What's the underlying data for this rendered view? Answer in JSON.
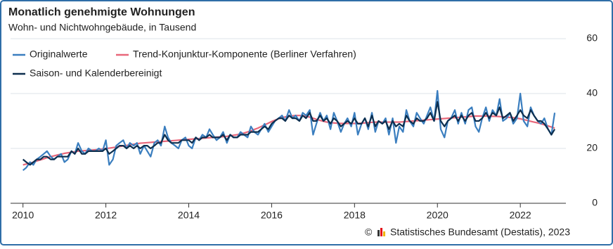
{
  "chart_data": {
    "type": "line",
    "title": "Monatlich genehmigte Wohnungen",
    "subtitle": "Wohn- und Nichtwohngebäude, in Tausend",
    "copyright": "©",
    "source": "Statistisches Bundesamt (Destatis), 2023",
    "legend": "top-left",
    "grid": true,
    "xlim": [
      2009.7,
      2023.1
    ],
    "xticks": [
      2010,
      2012,
      2014,
      2016,
      2018,
      2020,
      2022
    ],
    "ylim": [
      0,
      60
    ],
    "yticks": [
      0,
      20,
      40,
      60
    ],
    "x": [
      2010,
      2010.08,
      2010.17,
      2010.25,
      2010.33,
      2010.42,
      2010.5,
      2010.58,
      2010.67,
      2010.75,
      2010.83,
      2010.92,
      2011,
      2011.08,
      2011.17,
      2011.25,
      2011.33,
      2011.42,
      2011.5,
      2011.58,
      2011.67,
      2011.75,
      2011.83,
      2011.92,
      2012,
      2012.08,
      2012.17,
      2012.25,
      2012.33,
      2012.42,
      2012.5,
      2012.58,
      2012.67,
      2012.75,
      2012.83,
      2012.92,
      2013,
      2013.08,
      2013.17,
      2013.25,
      2013.33,
      2013.42,
      2013.5,
      2013.58,
      2013.67,
      2013.75,
      2013.83,
      2013.92,
      2014,
      2014.08,
      2014.17,
      2014.25,
      2014.33,
      2014.42,
      2014.5,
      2014.58,
      2014.67,
      2014.75,
      2014.83,
      2014.92,
      2015,
      2015.08,
      2015.17,
      2015.25,
      2015.33,
      2015.42,
      2015.5,
      2015.58,
      2015.67,
      2015.75,
      2015.83,
      2015.92,
      2016,
      2016.08,
      2016.17,
      2016.25,
      2016.33,
      2016.42,
      2016.5,
      2016.58,
      2016.67,
      2016.75,
      2016.83,
      2016.92,
      2017,
      2017.08,
      2017.17,
      2017.25,
      2017.33,
      2017.42,
      2017.5,
      2017.58,
      2017.67,
      2017.75,
      2017.83,
      2017.92,
      2018,
      2018.08,
      2018.17,
      2018.25,
      2018.33,
      2018.42,
      2018.5,
      2018.58,
      2018.67,
      2018.75,
      2018.83,
      2018.92,
      2019,
      2019.08,
      2019.17,
      2019.25,
      2019.33,
      2019.42,
      2019.5,
      2019.58,
      2019.67,
      2019.75,
      2019.83,
      2019.92,
      2020,
      2020.08,
      2020.17,
      2020.25,
      2020.33,
      2020.42,
      2020.5,
      2020.58,
      2020.67,
      2020.75,
      2020.83,
      2020.92,
      2021,
      2021.08,
      2021.17,
      2021.25,
      2021.33,
      2021.42,
      2021.5,
      2021.58,
      2021.67,
      2021.75,
      2021.83,
      2021.92,
      2022,
      2022.08,
      2022.17,
      2022.25,
      2022.33,
      2022.42,
      2022.5,
      2022.58,
      2022.67,
      2022.75,
      2022.83
    ],
    "series": [
      {
        "name": "Trend-Konjunktur-Komponente (Berliner Verfahren)",
        "color": "#e8677a",
        "values": [
          14,
          14.3,
          14.6,
          15,
          15.4,
          15.8,
          16.2,
          16.6,
          17,
          17.3,
          17.6,
          17.9,
          18.2,
          18.4,
          18.6,
          18.8,
          19,
          19.1,
          19.2,
          19.3,
          19.4,
          19.5,
          19.6,
          19.8,
          20,
          20.1,
          20.3,
          20.5,
          20.7,
          20.9,
          21.1,
          21.3,
          21.5,
          21.7,
          21.9,
          22,
          22.1,
          22.2,
          22.3,
          22.4,
          22.5,
          22.6,
          22.7,
          22.8,
          22.9,
          23,
          23.1,
          23.2,
          23.3,
          23.4,
          23.5,
          23.6,
          23.7,
          23.8,
          23.9,
          24,
          24.1,
          24.2,
          24.3,
          24.4,
          24.6,
          24.8,
          25,
          25.3,
          25.6,
          26,
          26.4,
          26.9,
          27.4,
          28,
          28.6,
          29.2,
          29.8,
          30.3,
          30.8,
          31.2,
          31.5,
          31.7,
          31.9,
          32,
          32,
          31.9,
          31.7,
          31.4,
          31,
          30.6,
          30.2,
          29.9,
          29.6,
          29.4,
          29.3,
          29.2,
          29.1,
          29.1,
          29.1,
          29.1,
          29.1,
          29.1,
          29.2,
          29.3,
          29.4,
          29.5,
          29.6,
          29.6,
          29.6,
          29.6,
          29.6,
          29.6,
          29.6,
          29.6,
          29.7,
          29.8,
          29.9,
          30,
          30.1,
          30.2,
          30.3,
          30.4,
          30.5,
          30.6,
          30.7,
          30.8,
          30.9,
          31,
          31.1,
          31.2,
          31.3,
          31.4,
          31.5,
          31.6,
          31.7,
          31.8,
          31.8,
          31.8,
          31.8,
          31.8,
          31.7,
          31.7,
          31.6,
          31.5,
          31.4,
          31.3,
          31.2,
          31,
          30.8,
          30.5,
          30.2,
          29.9,
          29.6,
          29.3,
          29,
          28.6,
          28.2,
          27.8,
          27.4
        ]
      },
      {
        "name": "Originalwerte",
        "color": "#3a7ebf",
        "values": [
          12,
          13,
          15,
          14,
          16,
          17,
          18,
          19,
          17,
          16,
          17,
          18,
          15,
          16,
          19,
          18,
          22,
          19,
          18,
          20,
          19,
          19,
          20,
          19,
          23,
          14,
          16,
          21,
          22,
          23,
          20,
          22,
          21,
          22,
          18,
          21,
          19,
          17,
          22,
          23,
          21,
          28,
          24,
          22,
          21,
          20,
          23,
          24,
          21,
          20,
          24,
          23,
          25,
          24,
          27,
          25,
          23,
          24,
          26,
          22,
          25,
          24,
          24,
          26,
          25,
          24,
          28,
          26,
          25,
          27,
          29,
          26,
          28,
          30,
          31,
          32,
          30,
          34,
          31,
          32,
          30,
          33,
          32,
          34,
          25,
          29,
          33,
          30,
          32,
          27,
          33,
          30,
          26,
          29,
          31,
          28,
          33,
          25,
          29,
          31,
          27,
          33,
          26,
          30,
          29,
          31,
          25,
          31,
          22,
          28,
          26,
          34,
          30,
          28,
          33,
          31,
          29,
          32,
          35,
          30,
          41,
          27,
          24,
          30,
          31,
          34,
          29,
          33,
          29,
          34,
          35,
          28,
          26,
          31,
          35,
          30,
          34,
          32,
          38,
          30,
          31,
          33,
          29,
          31,
          40,
          30,
          28,
          35,
          32,
          30,
          29,
          31,
          27,
          25,
          33
        ]
      },
      {
        "name": "Saison- und Kalenderbereinigt",
        "color": "#0d2f4f",
        "values": [
          16,
          15,
          14,
          15,
          16,
          16,
          17,
          17,
          16,
          16,
          17,
          17,
          17,
          17,
          19,
          18,
          20,
          18,
          18,
          19,
          19,
          19,
          19,
          19,
          20,
          18,
          19,
          20,
          21,
          21,
          20,
          21,
          20,
          21,
          20,
          21,
          21,
          20,
          21,
          22,
          22,
          25,
          23,
          22,
          22,
          22,
          23,
          23,
          23,
          22,
          24,
          23,
          24,
          24,
          25,
          24,
          24,
          24,
          25,
          23,
          25,
          24,
          24,
          25,
          25,
          25,
          26,
          26,
          26,
          27,
          28,
          27,
          29,
          30,
          31,
          31,
          30,
          32,
          31,
          31,
          30,
          32,
          31,
          33,
          30,
          30,
          32,
          30,
          31,
          29,
          31,
          30,
          28,
          29,
          30,
          29,
          31,
          29,
          29,
          31,
          28,
          32,
          28,
          30,
          29,
          30,
          27,
          30,
          28,
          29,
          28,
          32,
          30,
          29,
          31,
          30,
          30,
          31,
          33,
          30,
          37,
          30,
          28,
          30,
          31,
          32,
          30,
          32,
          30,
          32,
          33,
          30,
          30,
          31,
          33,
          31,
          33,
          32,
          35,
          31,
          32,
          33,
          30,
          32,
          34,
          32,
          31,
          34,
          32,
          30,
          30,
          29,
          27,
          25,
          27
        ]
      }
    ]
  }
}
